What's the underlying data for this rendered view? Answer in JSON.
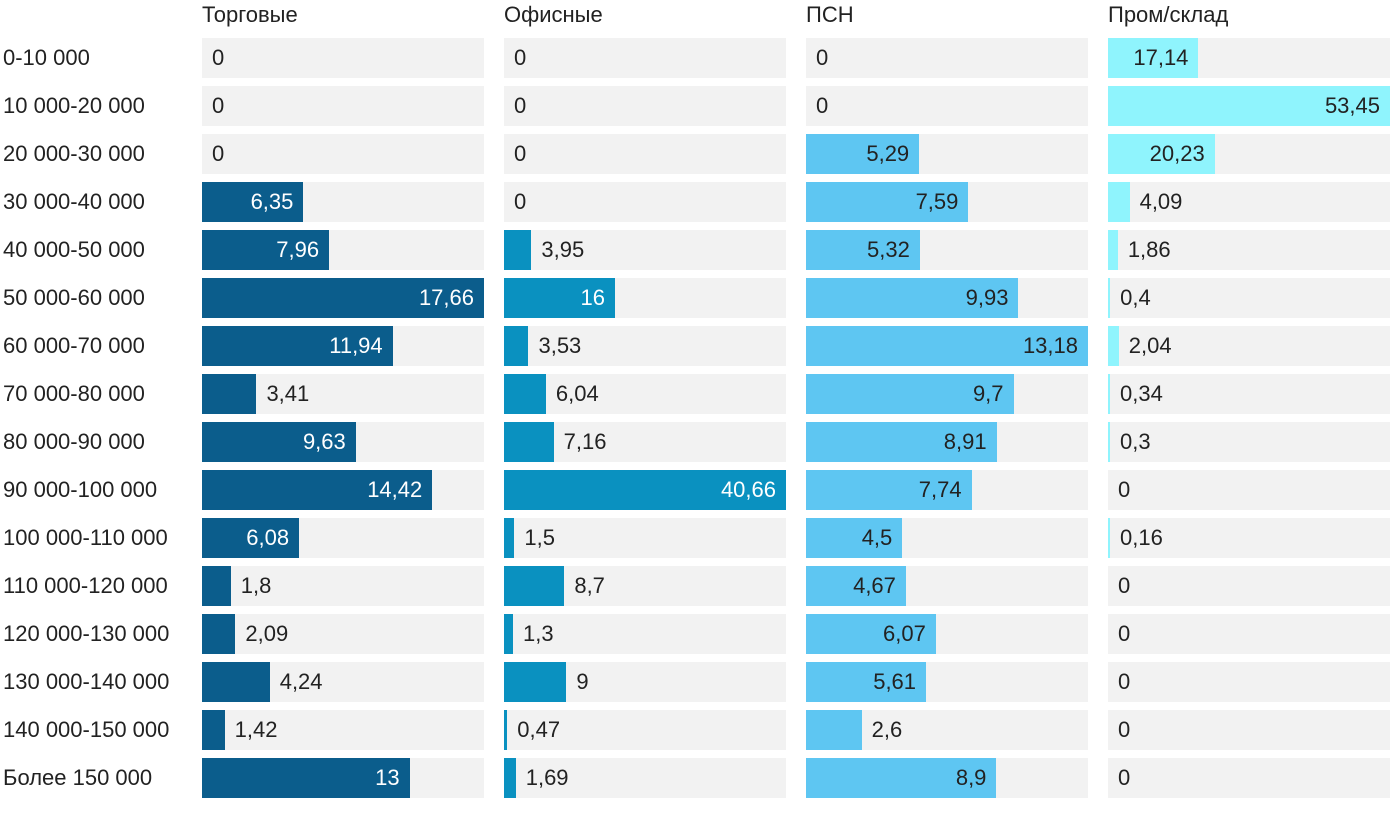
{
  "chart_data": {
    "type": "bar",
    "orientation": "horizontal",
    "layout": "small-multiples",
    "grid": false,
    "categories": [
      "0-10 000",
      "10 000-20 000",
      "20 000-30 000",
      "30 000-40 000",
      "40 000-50 000",
      "50 000-60 000",
      "60 000-70 000",
      "70 000-80 000",
      "80 000-90 000",
      "90 000-100 000",
      "100 000-110 000",
      "110 000-120 000",
      "120 000-130 000",
      "130 000-140 000",
      "140 000-150 000",
      "Более 150 000"
    ],
    "series": [
      {
        "name": "Торговые",
        "color": "#0b5d8c",
        "xlim": [
          0,
          17.66
        ],
        "values": [
          0,
          0,
          0,
          6.35,
          7.96,
          17.66,
          11.94,
          3.41,
          9.63,
          14.42,
          6.08,
          1.8,
          2.09,
          4.24,
          1.42,
          13
        ],
        "labels": [
          "0",
          "0",
          "0",
          "6,35",
          "7,96",
          "17,66",
          "11,94",
          "3,41",
          "9,63",
          "14,42",
          "6,08",
          "1,8",
          "2,09",
          "4,24",
          "1,42",
          "13"
        ]
      },
      {
        "name": "Офисные",
        "color": "#0a91c0",
        "xlim": [
          0,
          40.66
        ],
        "values": [
          0,
          0,
          0,
          0,
          3.95,
          16,
          3.53,
          6.04,
          7.16,
          40.66,
          1.5,
          8.7,
          1.3,
          9,
          0.47,
          1.69
        ],
        "labels": [
          "0",
          "0",
          "0",
          "0",
          "3,95",
          "16",
          "3,53",
          "6,04",
          "7,16",
          "40,66",
          "1,5",
          "8,7",
          "1,3",
          "9",
          "0,47",
          "1,69"
        ]
      },
      {
        "name": "ПСН",
        "color": "#5ec6f2",
        "xlim": [
          0,
          13.18
        ],
        "values": [
          0,
          0,
          5.29,
          7.59,
          5.32,
          9.93,
          13.18,
          9.7,
          8.91,
          7.74,
          4.5,
          4.67,
          6.07,
          5.61,
          2.6,
          8.9
        ],
        "labels": [
          "0",
          "0",
          "5,29",
          "7,59",
          "5,32",
          "9,93",
          "13,18",
          "9,7",
          "8,91",
          "7,74",
          "4,5",
          "4,67",
          "6,07",
          "5,61",
          "2,6",
          "8,9"
        ]
      },
      {
        "name": "Пром/склад",
        "color": "#8ff4fd",
        "xlim": [
          0,
          53.45
        ],
        "values": [
          17.14,
          53.45,
          20.23,
          4.09,
          1.86,
          0.4,
          2.04,
          0.34,
          0.3,
          0,
          0.16,
          0,
          0,
          0,
          0,
          0
        ],
        "labels": [
          "17,14",
          "53,45",
          "20,23",
          "4,09",
          "1,86",
          "0,4",
          "2,04",
          "0,34",
          "0,3",
          "0",
          "0,16",
          "0",
          "0",
          "0",
          "0",
          "0"
        ]
      }
    ]
  }
}
